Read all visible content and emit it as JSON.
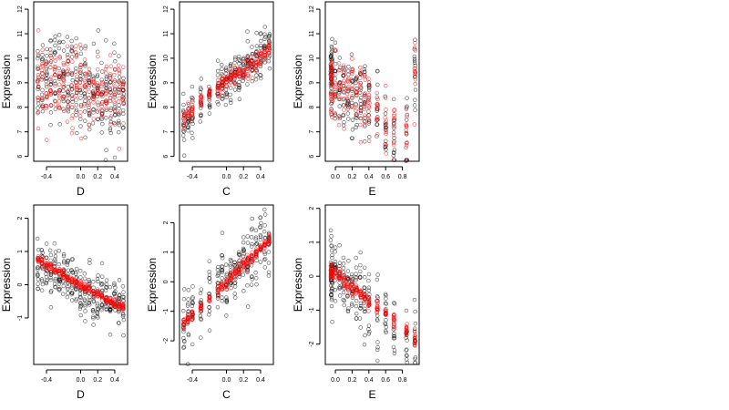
{
  "chart_data": {
    "type": "scatter",
    "rows": 2,
    "cols": 3,
    "colors": {
      "raw": "#000000",
      "fitted": "#ff0000"
    },
    "series_note": "",
    "panels": [
      {
        "id": "top-d",
        "xlabel": "D",
        "ylabel": "Expression",
        "xlim": [
          -0.55,
          0.55
        ],
        "ylim": [
          5.8,
          12.3
        ],
        "xticks": [
          -0.4,
          0,
          0.2,
          0.4
        ],
        "xtick_labels": [
          "-0.4",
          "0.0",
          "0.2",
          "0.4"
        ],
        "yticks": [
          6,
          7,
          8,
          9,
          10,
          11,
          12
        ],
        "ytick_labels": [
          "6",
          "7",
          "8",
          "9",
          "10",
          "11",
          "12"
        ],
        "x_groups": [
          -0.5,
          -0.45,
          -0.4,
          -0.35,
          -0.3,
          -0.25,
          -0.2,
          -0.15,
          -0.1,
          -0.05,
          0.0,
          0.05,
          0.1,
          0.15,
          0.2,
          0.25,
          0.3,
          0.35,
          0.4,
          0.45,
          0.5
        ],
        "raw_center": [
          9.2,
          9.4,
          9.5,
          9.4,
          9.3,
          9.3,
          9.2,
          9.0,
          9.0,
          8.9,
          8.9,
          8.8,
          8.7,
          8.7,
          8.6,
          8.5,
          8.4,
          8.3,
          8.2,
          8.1,
          8.0
        ],
        "raw_spread": 1.6,
        "fit_center": [
          9.0,
          9.0,
          8.9,
          8.9,
          8.9,
          8.8,
          8.8,
          8.8,
          8.8,
          8.7,
          8.7,
          8.7,
          8.7,
          8.6,
          8.6,
          8.6,
          8.6,
          8.5,
          8.5,
          8.5,
          8.5
        ],
        "fit_spread": 1.4
      },
      {
        "id": "top-c",
        "xlabel": "C",
        "ylabel": "Expression",
        "xlim": [
          -0.55,
          0.55
        ],
        "ylim": [
          5.8,
          12.3
        ],
        "xticks": [
          -0.4,
          0,
          0.2,
          0.4
        ],
        "xtick_labels": [
          "-0.4",
          "0.0",
          "0.2",
          "0.4"
        ],
        "yticks": [
          6,
          7,
          8,
          9,
          10,
          11,
          12
        ],
        "ytick_labels": [
          "6",
          "7",
          "8",
          "9",
          "10",
          "11",
          "12"
        ],
        "x_groups": [
          -0.5,
          -0.45,
          -0.4,
          -0.3,
          -0.2,
          -0.1,
          -0.05,
          0.0,
          0.05,
          0.1,
          0.15,
          0.2,
          0.25,
          0.3,
          0.35,
          0.4,
          0.45,
          0.5
        ],
        "raw_center": [
          7.2,
          7.5,
          7.8,
          8.1,
          8.5,
          8.8,
          9.0,
          8.9,
          9.1,
          9.3,
          9.4,
          9.5,
          9.7,
          9.8,
          10.0,
          10.1,
          10.3,
          10.5
        ],
        "raw_spread": 0.8,
        "fit_center": [
          7.5,
          7.7,
          7.9,
          8.3,
          8.6,
          8.8,
          9.0,
          9.1,
          9.2,
          9.3,
          9.4,
          9.5,
          9.6,
          9.7,
          9.9,
          10.0,
          10.2,
          10.4
        ],
        "fit_spread": 0.35
      },
      {
        "id": "top-e",
        "xlabel": "E",
        "ylabel": "Expression",
        "xlim": [
          -0.12,
          1.0
        ],
        "ylim": [
          5.8,
          12.3
        ],
        "xticks": [
          0,
          0.2,
          0.4,
          0.6,
          0.8
        ],
        "xtick_labels": [
          "0.0",
          "0.2",
          "0.4",
          "0.6",
          "0.8"
        ],
        "yticks": [
          6,
          7,
          8,
          9,
          10,
          11,
          12
        ],
        "ytick_labels": [
          "6",
          "7",
          "8",
          "9",
          "10",
          "11",
          "12"
        ],
        "x_groups": [
          -0.05,
          -0.05,
          -0.04,
          0.0,
          0.05,
          0.1,
          0.15,
          0.2,
          0.25,
          0.3,
          0.35,
          0.4,
          0.5,
          0.6,
          0.7,
          0.85,
          0.95
        ],
        "raw_center": [
          9.0,
          8.8,
          9.2,
          8.8,
          8.7,
          8.6,
          8.5,
          8.4,
          8.3,
          8.2,
          8.1,
          8.0,
          7.6,
          7.3,
          7.0,
          6.6,
          9.2
        ],
        "raw_spread": 1.5,
        "fit_center": [
          9.0,
          8.9,
          9.0,
          8.9,
          8.8,
          8.7,
          8.6,
          8.5,
          8.4,
          8.3,
          8.2,
          8.1,
          7.8,
          7.5,
          7.3,
          6.9,
          9.5
        ],
        "fit_spread": 1.2
      },
      {
        "id": "bottom-d",
        "xlabel": "D",
        "ylabel": "Expression",
        "xlim": [
          -0.55,
          0.55
        ],
        "ylim": [
          -2.4,
          2.4
        ],
        "xticks": [
          -0.4,
          0,
          0.2,
          0.4
        ],
        "xtick_labels": [
          "-0.4",
          "0.0",
          "0.2",
          "0.4"
        ],
        "yticks": [
          -1,
          0,
          1,
          2
        ],
        "ytick_labels": [
          "-1",
          "0",
          "1",
          "2"
        ],
        "x_groups": [
          -0.5,
          -0.45,
          -0.4,
          -0.35,
          -0.3,
          -0.25,
          -0.2,
          -0.15,
          -0.1,
          -0.05,
          0.0,
          0.05,
          0.1,
          0.15,
          0.2,
          0.25,
          0.3,
          0.35,
          0.4,
          0.45,
          0.5
        ],
        "raw_center": [
          0.7,
          0.6,
          0.5,
          0.45,
          0.35,
          0.3,
          0.2,
          0.1,
          0.0,
          -0.05,
          -0.1,
          -0.2,
          -0.25,
          -0.3,
          -0.35,
          -0.4,
          -0.5,
          -0.55,
          -0.65,
          -0.7,
          -0.75
        ],
        "raw_spread": 0.7,
        "fit_center": [
          0.75,
          0.7,
          0.6,
          0.55,
          0.45,
          0.38,
          0.3,
          0.2,
          0.1,
          0.05,
          0.0,
          -0.1,
          -0.15,
          -0.22,
          -0.28,
          -0.35,
          -0.42,
          -0.5,
          -0.58,
          -0.65,
          -0.7
        ],
        "fit_spread": 0.12
      },
      {
        "id": "bottom-c",
        "xlabel": "C",
        "ylabel": "Expression",
        "xlim": [
          -0.55,
          0.55
        ],
        "ylim": [
          -2.8,
          2.6
        ],
        "xticks": [
          -0.4,
          0,
          0.2,
          0.4
        ],
        "xtick_labels": [
          "-0.4",
          "0.0",
          "0.2",
          "0.4"
        ],
        "yticks": [
          -2,
          -1,
          0,
          1,
          2
        ],
        "ytick_labels": [
          "-2",
          "-1",
          "0",
          "1",
          "2"
        ],
        "x_groups": [
          -0.5,
          -0.45,
          -0.4,
          -0.3,
          -0.2,
          -0.1,
          -0.05,
          0.0,
          0.05,
          0.1,
          0.15,
          0.2,
          0.25,
          0.3,
          0.35,
          0.4,
          0.45,
          0.5
        ],
        "raw_center": [
          -1.5,
          -1.3,
          -1.2,
          -0.9,
          -0.6,
          -0.3,
          0.1,
          -0.1,
          0.2,
          0.3,
          0.5,
          0.6,
          0.8,
          0.9,
          1.1,
          1.3,
          1.4,
          1.5
        ],
        "raw_spread": 0.9,
        "fit_center": [
          -1.4,
          -1.25,
          -1.1,
          -0.85,
          -0.6,
          -0.3,
          -0.1,
          0.0,
          0.15,
          0.3,
          0.45,
          0.6,
          0.7,
          0.85,
          1.0,
          1.15,
          1.3,
          1.45
        ],
        "fit_spread": 0.18
      },
      {
        "id": "bottom-e",
        "xlabel": "E",
        "ylabel": "Expression",
        "xlim": [
          -0.12,
          1.0
        ],
        "ylim": [
          -2.6,
          2.1
        ],
        "xticks": [
          0,
          0.2,
          0.4,
          0.6,
          0.8
        ],
        "xtick_labels": [
          "0.0",
          "0.2",
          "0.4",
          "0.6",
          "0.8"
        ],
        "yticks": [
          -2,
          -1,
          0,
          1,
          2
        ],
        "ytick_labels": [
          "-2",
          "-1",
          "0",
          "1",
          "2"
        ],
        "x_groups": [
          -0.05,
          -0.05,
          -0.04,
          0.0,
          0.05,
          0.1,
          0.15,
          0.2,
          0.25,
          0.3,
          0.35,
          0.4,
          0.5,
          0.6,
          0.7,
          0.85,
          0.95
        ],
        "raw_center": [
          0.0,
          0.2,
          -0.2,
          0.3,
          0.0,
          -0.2,
          -0.3,
          -0.4,
          -0.5,
          -0.6,
          -0.7,
          -0.8,
          -1.0,
          -1.2,
          -1.4,
          -1.8,
          -1.9
        ],
        "raw_spread": 0.9,
        "fit_center": [
          0.1,
          0.15,
          0.05,
          0.1,
          0.0,
          -0.15,
          -0.25,
          -0.35,
          -0.45,
          -0.55,
          -0.65,
          -0.75,
          -0.9,
          -1.1,
          -1.3,
          -1.6,
          -1.85
        ],
        "fit_spread": 0.2
      }
    ]
  }
}
